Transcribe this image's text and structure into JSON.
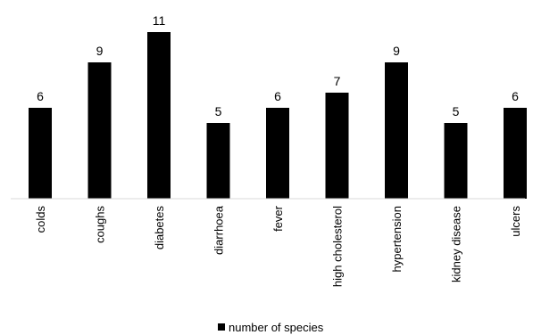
{
  "chart_data": {
    "type": "bar",
    "title": "",
    "xlabel": "",
    "ylabel": "",
    "categories": [
      "colds",
      "coughs",
      "diabetes",
      "diarrhoea",
      "fever",
      "high cholesterol",
      "hypertension",
      "kidney disease",
      "ulcers"
    ],
    "series": [
      {
        "name": "number of species",
        "values": [
          6,
          9,
          11,
          5,
          6,
          7,
          9,
          5,
          6
        ],
        "color": "#000000"
      }
    ],
    "ylim": [
      0,
      11
    ],
    "data_labels": true,
    "grid": false,
    "legend": {
      "position": "bottom"
    }
  }
}
